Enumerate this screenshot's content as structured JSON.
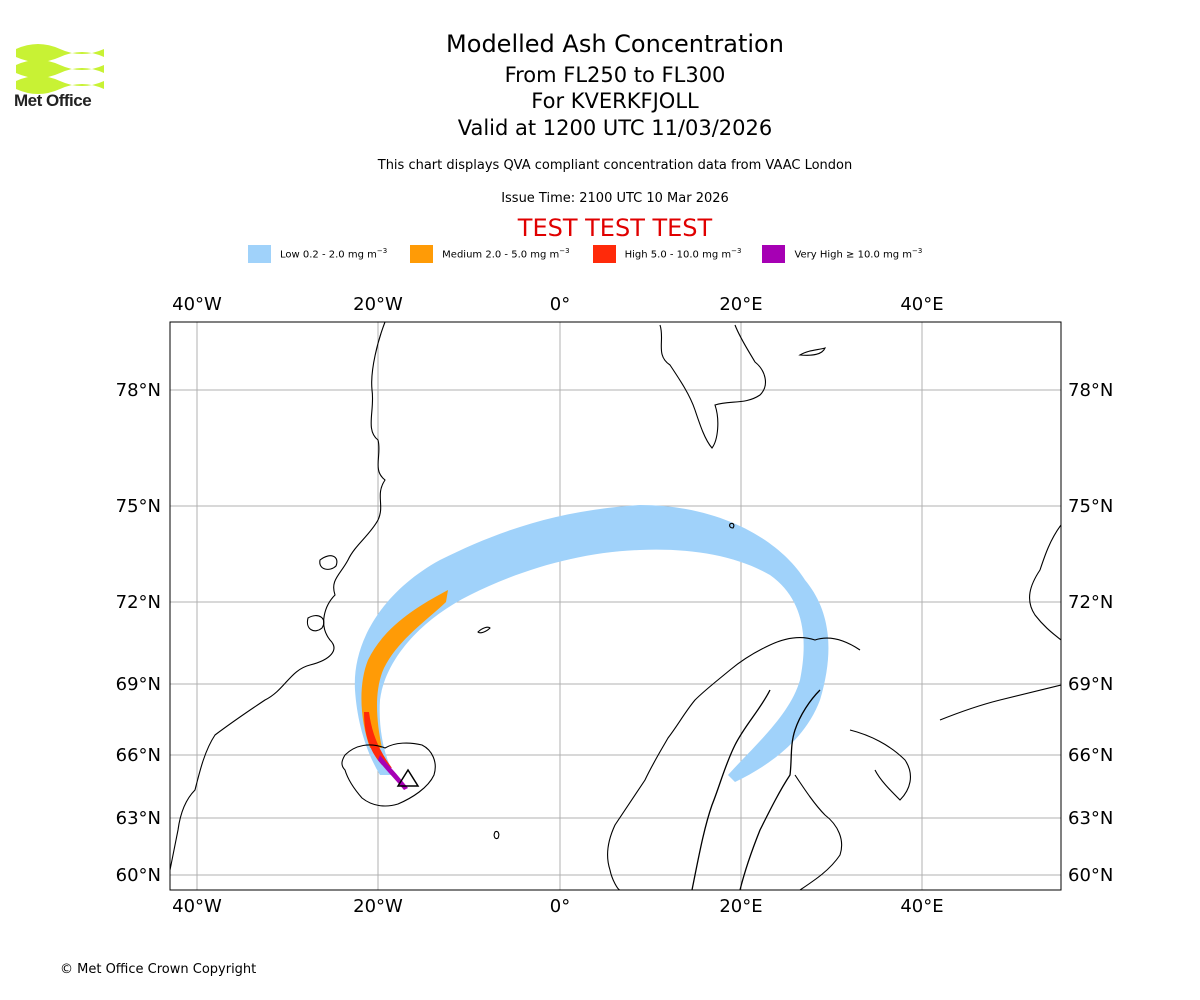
{
  "header": {
    "logo_text": "Met Office",
    "title": "Modelled Ash Concentration",
    "flight_levels": "From FL250 to FL300",
    "volcano": "For KVERKFJOLL",
    "valid_time": "Valid at 1200 UTC 11/03/2026",
    "description": "This chart displays QVA compliant concentration data from VAAC London",
    "issue_time": "Issue Time: 2100 UTC 10 Mar 2026",
    "test_banner": "TEST TEST TEST"
  },
  "legend": [
    {
      "label": "Low 0.2 - 2.0 mg m",
      "sup": "−3",
      "color": "#a0d2fa"
    },
    {
      "label": "Medium 2.0 - 5.0 mg m",
      "sup": "−3",
      "color": "#ff9b06"
    },
    {
      "label": "High 5.0 - 10.0 mg m",
      "sup": "−3",
      "color": "#ff2a0a"
    },
    {
      "label": "Very High  ≥  10.0 mg m",
      "sup": "−3",
      "color": "#a600b4"
    }
  ],
  "map": {
    "lon_labels": [
      "40°W",
      "20°W",
      "0°",
      "20°E",
      "40°E"
    ],
    "lat_labels": [
      "78°N",
      "75°N",
      "72°N",
      "69°N",
      "66°N",
      "63°N",
      "60°N"
    ],
    "gridline_color": "#b0b0b0",
    "volcano_marker": "triangle-icon"
  },
  "footer": {
    "copyright": "© Met Office Crown Copyright"
  }
}
